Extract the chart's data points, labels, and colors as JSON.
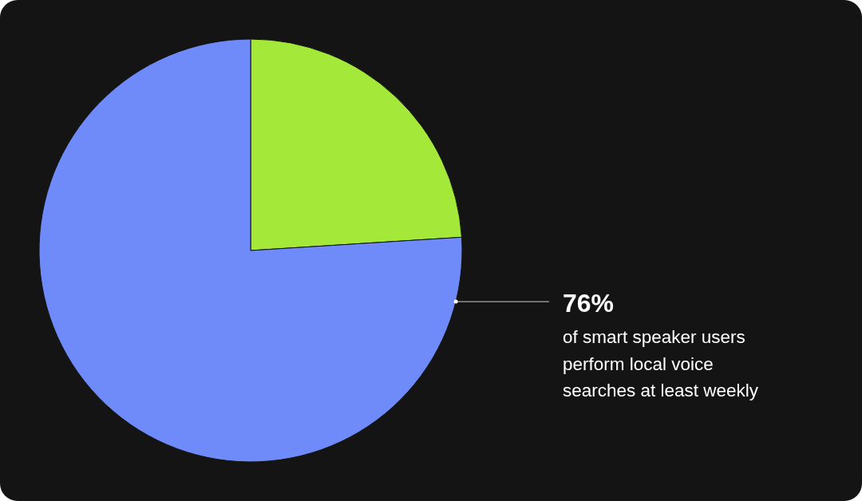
{
  "chart_data": {
    "type": "pie",
    "categories": [
      null,
      null
    ],
    "values": [
      24,
      76
    ],
    "colors": [
      "#a4e83a",
      "#6e8bf9"
    ],
    "value_labels": [
      null,
      "76%"
    ],
    "annotations": [
      "of smart speaker users perform local voice searches at least weekly"
    ]
  }
}
